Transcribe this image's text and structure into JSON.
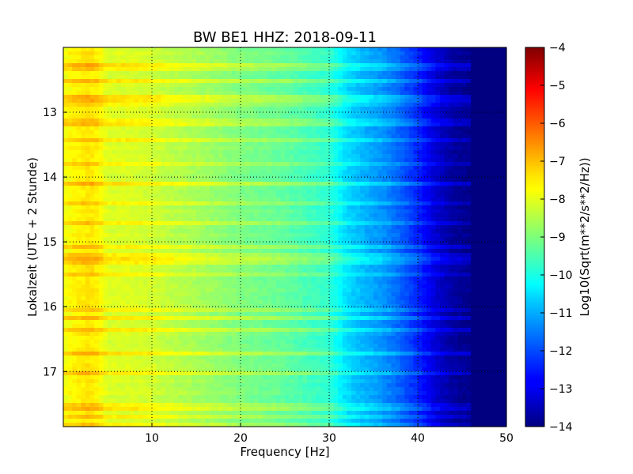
{
  "chart_data": {
    "type": "heatmap",
    "title": "BW BE1 HHZ: 2018-09-11",
    "xlabel": "Frequency [Hz]",
    "ylabel": "Lokalzeit (UTC + 2 Stunde)",
    "xlim": [
      0,
      50
    ],
    "ylim": [
      17.85,
      12.0
    ],
    "x_ticks": [
      "10",
      "20",
      "30",
      "40",
      "50"
    ],
    "y_ticks": [
      "13",
      "14",
      "15",
      "16",
      "17"
    ],
    "grid": true,
    "colorbar": {
      "label": "Log10(Sqrt(m**2/s**2/Hz))",
      "range": [
        -14,
        -4
      ],
      "ticks": [
        "-4",
        "-5",
        "-6",
        "-7",
        "-8",
        "-9",
        "-10",
        "-11",
        "-12",
        "-13",
        "-14"
      ],
      "colormap": "jet"
    },
    "spectrum_profile": {
      "frequency_hz": [
        0,
        1,
        2,
        3,
        4,
        5,
        7,
        10,
        12,
        15,
        20,
        25,
        28,
        30,
        32,
        34,
        36,
        38,
        40,
        42,
        44,
        46,
        50
      ],
      "log10_amplitude": [
        -7.9,
        -7.7,
        -7.6,
        -7.5,
        -7.7,
        -8.1,
        -8.1,
        -8.2,
        -8.4,
        -8.6,
        -9.0,
        -9.3,
        -9.6,
        -9.8,
        -10.6,
        -11.0,
        -11.3,
        -11.8,
        -12.4,
        -13.2,
        -13.7,
        -13.9,
        -14.0
      ]
    }
  }
}
